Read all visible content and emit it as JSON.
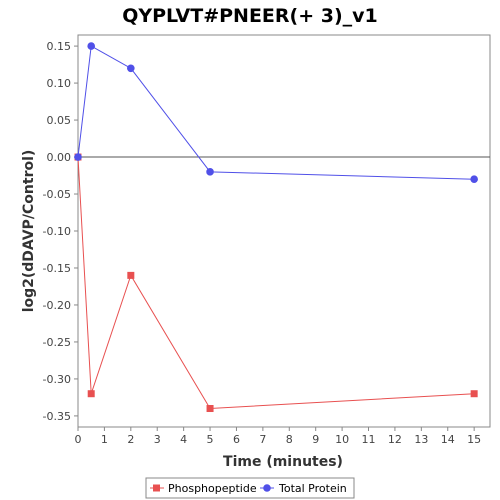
{
  "chart_data": {
    "type": "line",
    "title": "QYPLVT#PNEER(+ 3)_v1",
    "xlabel": "Time (minutes)",
    "ylabel": "log2(dDAVP/Control)",
    "xlim": [
      0,
      15.6
    ],
    "ylim": [
      -0.365,
      0.165
    ],
    "x_ticks": [
      0,
      1,
      2,
      3,
      4,
      5,
      6,
      7,
      8,
      9,
      10,
      11,
      12,
      13,
      14,
      15
    ],
    "y_ticks": [
      0.15,
      0.1,
      0.05,
      0.0,
      -0.05,
      -0.1,
      -0.15,
      -0.2,
      -0.25,
      -0.3,
      -0.35
    ],
    "y_tick_labels": [
      "0.15",
      "0.10",
      "0.05",
      "0.00",
      "-0.05",
      "-0.10",
      "-0.15",
      "-0.20",
      "-0.25",
      "-0.30",
      "-0.35"
    ],
    "zero_line": true,
    "legend_position": "bottom",
    "series": [
      {
        "name": "Phosphopeptide",
        "color": "#e85050",
        "marker": "square",
        "x": [
          0,
          0.5,
          2,
          5,
          15
        ],
        "y": [
          0.0,
          -0.32,
          -0.16,
          -0.34,
          -0.32
        ]
      },
      {
        "name": "Total Protein",
        "color": "#5050e8",
        "marker": "circle",
        "x": [
          0,
          0.5,
          2,
          5,
          15
        ],
        "y": [
          0.0,
          0.15,
          0.12,
          -0.02,
          -0.03
        ]
      }
    ]
  }
}
